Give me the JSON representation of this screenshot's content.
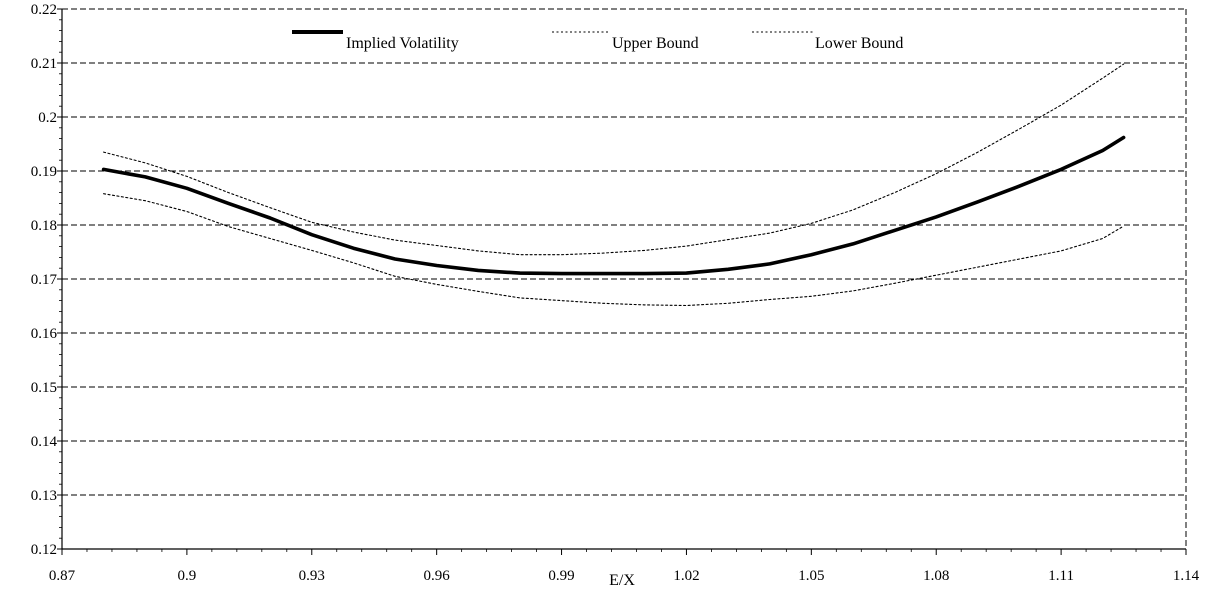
{
  "chart_data": {
    "type": "line",
    "xlabel": "E/X",
    "ylabel": "",
    "title": "",
    "xlim": [
      0.87,
      1.14
    ],
    "ylim": [
      0.12,
      0.22
    ],
    "x_ticks": [
      0.87,
      0.9,
      0.93,
      0.96,
      0.99,
      1.02,
      1.05,
      1.08,
      1.11,
      1.14
    ],
    "x_tick_labels": [
      "0.87",
      "0.9",
      "0.93",
      "0.96",
      "0.99",
      "1.02",
      "1.05",
      "1.08",
      "1.11",
      "1.14"
    ],
    "y_ticks": [
      0.12,
      0.13,
      0.14,
      0.15,
      0.16,
      0.17,
      0.18,
      0.19,
      0.2,
      0.21,
      0.22
    ],
    "y_tick_labels": [
      "0.12",
      "0.13",
      "0.14",
      "0.15",
      "0.16",
      "0.17",
      "0.18",
      "0.19",
      "0.2",
      "0.21",
      "0.22"
    ],
    "grid": "horizontal-dashed",
    "legend_position": "top-center",
    "x": [
      0.88,
      0.89,
      0.9,
      0.91,
      0.92,
      0.93,
      0.94,
      0.95,
      0.96,
      0.97,
      0.98,
      0.99,
      1.0,
      1.01,
      1.02,
      1.03,
      1.04,
      1.05,
      1.06,
      1.07,
      1.08,
      1.09,
      1.1,
      1.11,
      1.12,
      1.125
    ],
    "series": [
      {
        "name": "Implied Volatility",
        "style": "solid-thick",
        "color": "#000000",
        "values": [
          0.1903,
          0.1889,
          0.1868,
          0.184,
          0.1813,
          0.1782,
          0.1757,
          0.1737,
          0.1725,
          0.1716,
          0.1711,
          0.171,
          0.171,
          0.171,
          0.1711,
          0.1718,
          0.1728,
          0.1745,
          0.1765,
          0.179,
          0.1815,
          0.1843,
          0.1872,
          0.1903,
          0.1938,
          0.1962
        ]
      },
      {
        "name": "Upper Bound",
        "style": "dotted",
        "color": "#000000",
        "values": [
          0.1935,
          0.1915,
          0.189,
          0.186,
          0.1832,
          0.1805,
          0.1787,
          0.1772,
          0.1762,
          0.1752,
          0.1745,
          0.1745,
          0.1748,
          0.1753,
          0.1761,
          0.1773,
          0.1785,
          0.1803,
          0.1828,
          0.186,
          0.1895,
          0.1935,
          0.1978,
          0.2022,
          0.2072,
          0.2098
        ]
      },
      {
        "name": "Lower Bound",
        "style": "dotted",
        "color": "#000000",
        "values": [
          0.1858,
          0.1845,
          0.1825,
          0.1797,
          0.1775,
          0.1753,
          0.173,
          0.1705,
          0.169,
          0.1677,
          0.1665,
          0.166,
          0.1655,
          0.1652,
          0.1651,
          0.1655,
          0.1662,
          0.1668,
          0.1678,
          0.1692,
          0.1707,
          0.1722,
          0.1737,
          0.1752,
          0.1775,
          0.1798
        ]
      }
    ]
  }
}
